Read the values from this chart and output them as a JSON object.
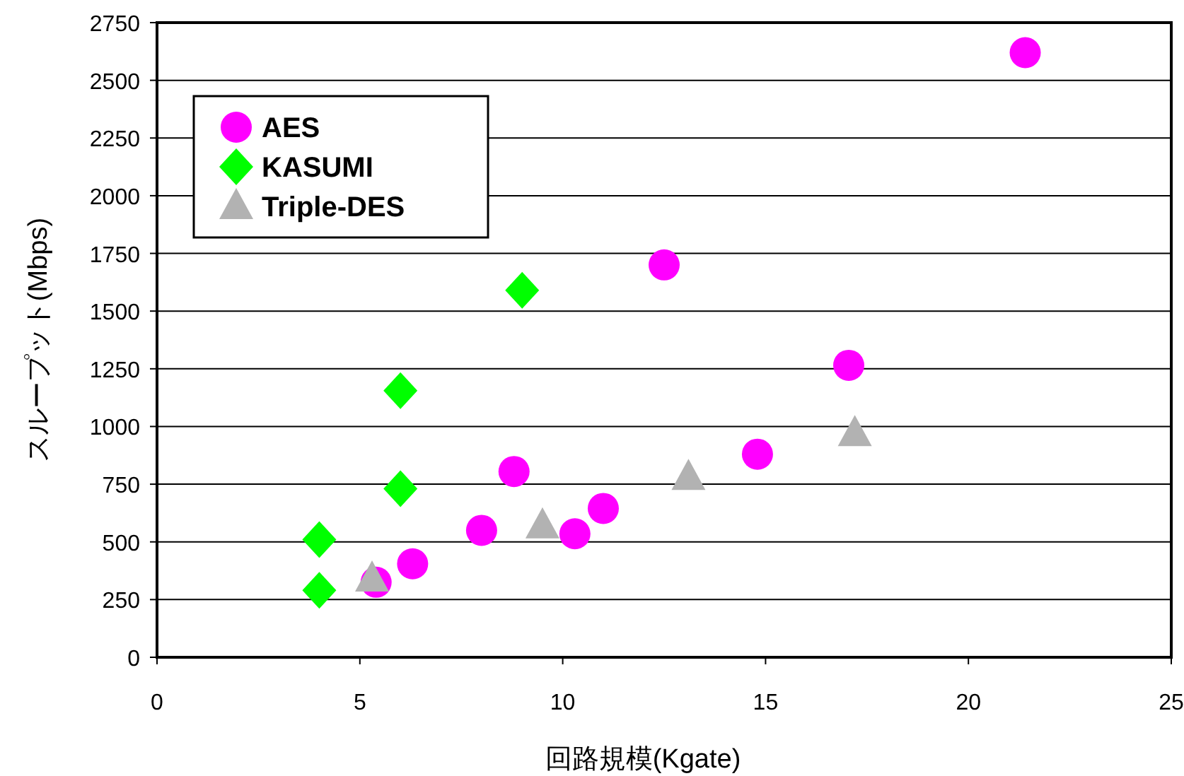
{
  "chart_data": {
    "type": "scatter",
    "xlabel": "回路規模(Kgate)",
    "ylabel": "スループット(Mbps)",
    "xlim": [
      0,
      25
    ],
    "xticks": [
      0,
      5,
      10,
      15,
      20,
      25
    ],
    "ylim": [
      0,
      2750
    ],
    "yticks": [
      0,
      250,
      500,
      750,
      1000,
      1250,
      1500,
      1750,
      2000,
      2250,
      2500,
      2750
    ],
    "grid": "y",
    "legend": "top left",
    "series": [
      {
        "name": "AES",
        "color": "#ff00ff",
        "marker": "circle",
        "x": [
          21.4,
          12.5,
          17.05,
          14.8,
          8.8,
          11,
          8,
          10.3,
          6.3,
          5.4
        ],
        "values": [
          2620,
          1700,
          1265,
          880,
          805,
          645,
          550,
          535,
          405,
          325
        ]
      },
      {
        "name": "KASUMI",
        "color": "#00ff00",
        "marker": "diamond",
        "x": [
          9,
          6,
          6,
          4,
          4
        ],
        "values": [
          1590,
          1155,
          730,
          510,
          290
        ]
      },
      {
        "name": "Triple-DES",
        "color": "#b2b2b2",
        "marker": "triangle",
        "x": [
          17.2,
          13.1,
          9.5,
          5.3
        ],
        "values": [
          970,
          780,
          570,
          340
        ]
      }
    ]
  }
}
